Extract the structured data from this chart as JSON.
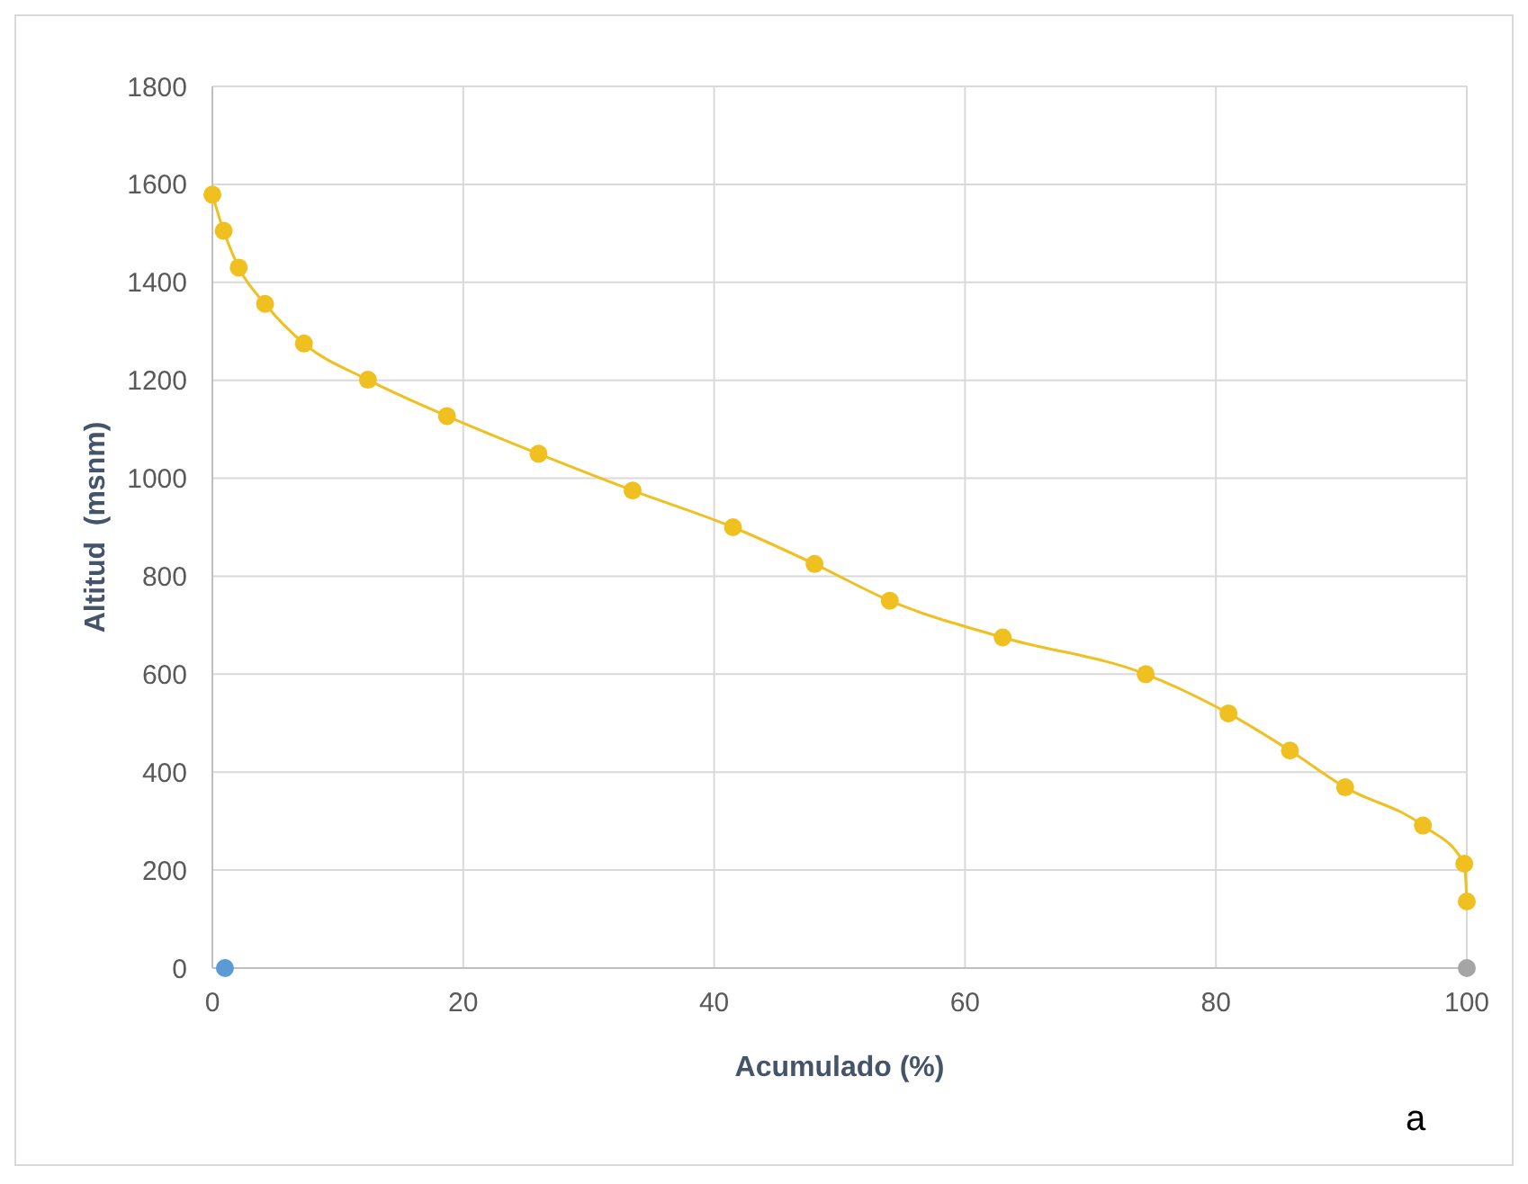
{
  "chart_data": {
    "type": "line",
    "xlabel": "Acumulado (%)",
    "ylabel": "Altitud  (msnm)",
    "xlim": [
      0,
      100
    ],
    "ylim": [
      0,
      1800
    ],
    "xticks": [
      0,
      20,
      40,
      60,
      80,
      100
    ],
    "yticks": [
      0,
      200,
      400,
      600,
      800,
      1000,
      1200,
      1400,
      1600,
      1800
    ],
    "grid": true,
    "marker": "circle",
    "line_style": "solid",
    "annotations": [
      "a"
    ],
    "series": [
      {
        "color": "#f0c020",
        "x": [
          0,
          0.9,
          2.1,
          4.2,
          7.3,
          12.4,
          18.7,
          26,
          33.5,
          41.5,
          48,
          54,
          63,
          74.4,
          81,
          85.9,
          90.3,
          96.5,
          99.8,
          100
        ],
        "values": [
          1579,
          1505,
          1430,
          1356,
          1275,
          1201,
          1127,
          1050,
          975,
          900,
          825,
          750,
          675,
          600,
          520,
          444,
          369,
          291,
          213,
          136
        ]
      },
      {
        "type": "scatter",
        "color": "#5b9bd5",
        "x": [
          1
        ],
        "values": [
          0
        ]
      },
      {
        "type": "scatter",
        "color": "#a5a5a5",
        "x": [
          100
        ],
        "values": [
          0
        ]
      }
    ]
  }
}
